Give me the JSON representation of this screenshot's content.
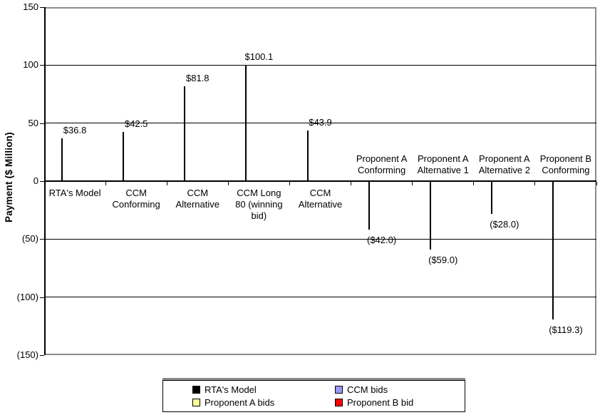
{
  "chart_data": {
    "type": "bar",
    "title": "",
    "xlabel": "",
    "ylabel": "Payment ($ Million)",
    "ylim": [
      -150,
      150
    ],
    "grid": true,
    "legend_position": "bottom",
    "yticks": [
      {
        "value": 150,
        "label": "150"
      },
      {
        "value": 100,
        "label": "100"
      },
      {
        "value": 50,
        "label": "50"
      },
      {
        "value": 0,
        "label": "0"
      },
      {
        "value": -50,
        "label": "(50)"
      },
      {
        "value": -100,
        "label": "(100)"
      },
      {
        "value": -150,
        "label": "(150)"
      }
    ],
    "categories": [
      {
        "label": "RTA's Model",
        "label_lines": [
          "RTA's Model"
        ],
        "value": 36.8,
        "data_label": "$36.8",
        "series": "rta_model"
      },
      {
        "label": "CCM Conforming",
        "label_lines": [
          "CCM",
          "Conforming"
        ],
        "value": 42.5,
        "data_label": "$42.5",
        "series": "ccm_bids"
      },
      {
        "label": "CCM Alternative",
        "label_lines": [
          "CCM",
          "Alternative"
        ],
        "value": 81.8,
        "data_label": "$81.8",
        "series": "ccm_bids"
      },
      {
        "label": "CCM Long 80 (winning bid)",
        "label_lines": [
          "CCM Long",
          "80 (winning",
          "bid)"
        ],
        "value": 100.1,
        "data_label": "$100.1",
        "series": "ccm_bids"
      },
      {
        "label": "CCM Alternative",
        "label_lines": [
          "CCM",
          "Alternative"
        ],
        "value": 43.9,
        "data_label": "$43.9",
        "series": "ccm_bids"
      },
      {
        "label": "Proponent A Conforming",
        "label_lines": [
          "Proponent A",
          "Conforming"
        ],
        "value": -42.0,
        "data_label": "($42.0)",
        "series": "proponent_a_bids"
      },
      {
        "label": "Proponent A Alternative 1",
        "label_lines": [
          "Proponent A",
          "Alternative 1"
        ],
        "value": -59.0,
        "data_label": "($59.0)",
        "series": "proponent_a_bids"
      },
      {
        "label": "Proponent A Alternative 2",
        "label_lines": [
          "Proponent A",
          "Alternative 2"
        ],
        "value": -28.0,
        "data_label": "($28.0)",
        "series": "proponent_a_bids"
      },
      {
        "label": "Proponent B Conforming",
        "label_lines": [
          "Proponent B",
          "Conforming"
        ],
        "value": -119.3,
        "data_label": "($119.3)",
        "series": "proponent_b_bid"
      }
    ],
    "series_colors": {
      "rta_model": "#000000",
      "ccm_bids": "#9999FA",
      "proponent_a_bids": "#FFFF99",
      "proponent_b_bid": "#FF0000"
    },
    "legend": [
      {
        "label": "RTA's Model",
        "series": "rta_model"
      },
      {
        "label": "CCM bids",
        "series": "ccm_bids"
      },
      {
        "label": "Proponent A bids",
        "series": "proponent_a_bids"
      },
      {
        "label": "Proponent B bid",
        "series": "proponent_b_bid"
      }
    ]
  }
}
